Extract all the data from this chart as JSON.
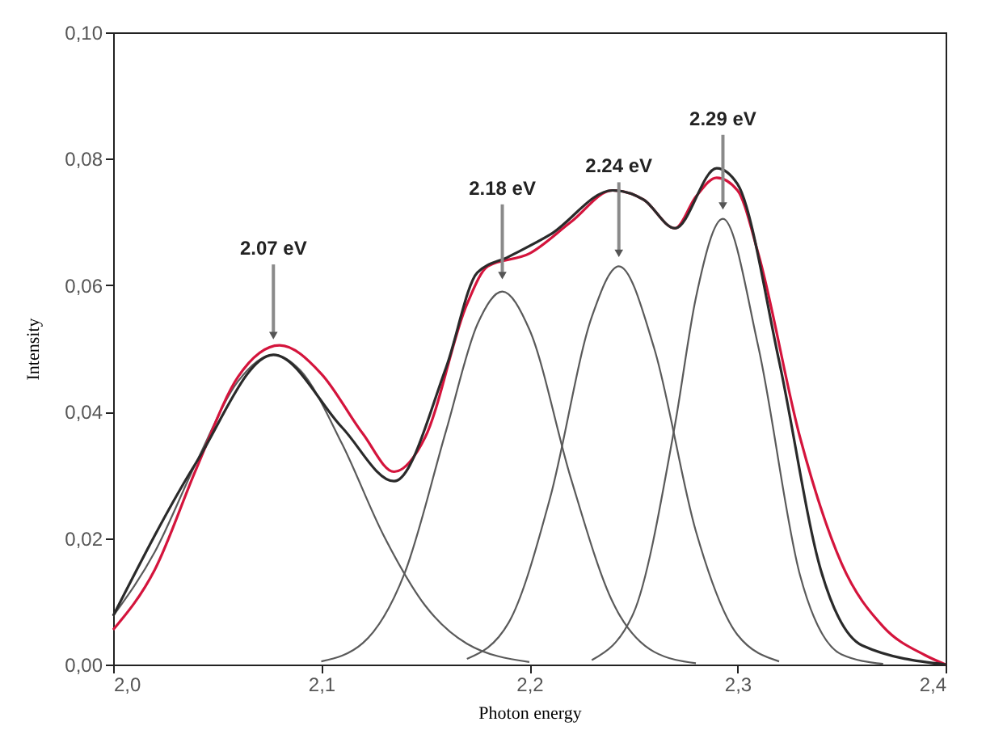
{
  "chart_data": {
    "type": "line",
    "xlabel": "Photon energy",
    "ylabel": "Intensity",
    "xlim": [
      2.0,
      2.4
    ],
    "ylim": [
      0,
      0.1
    ],
    "xticks": [
      {
        "value": 2.0,
        "label": "2,0"
      },
      {
        "value": 2.1,
        "label": "2,1"
      },
      {
        "value": 2.2,
        "label": "2,2"
      },
      {
        "value": 2.3,
        "label": "2,3"
      },
      {
        "value": 2.4,
        "label": "2,4"
      }
    ],
    "yticks": [
      {
        "value": 0,
        "label": "0,00"
      },
      {
        "value": 0.02,
        "label": "0,02"
      },
      {
        "value": 0.04,
        "label": "0,04"
      },
      {
        "value": 0.06,
        "label": "0,06"
      },
      {
        "value": 0.08,
        "label": "0,08"
      },
      {
        "value": 0.1,
        "label": "0,10"
      }
    ],
    "grid": false,
    "marker": "none",
    "line_style": "solid",
    "series": [
      {
        "color": "#5a5a5a",
        "x": [
          2.0,
          2.02,
          2.04,
          2.06,
          2.077,
          2.09,
          2.11,
          2.13,
          2.15,
          2.17,
          2.2
        ],
        "values": [
          0.0077,
          0.0178,
          0.032,
          0.0448,
          0.049,
          0.0465,
          0.0349,
          0.0204,
          0.0093,
          0.0033,
          0.0004
        ]
      },
      {
        "color": "#5a5a5a",
        "x": [
          2.1,
          2.12,
          2.14,
          2.16,
          2.175,
          2.187,
          2.2,
          2.22,
          2.24,
          2.26,
          2.28
        ],
        "values": [
          0.0005,
          0.0034,
          0.0144,
          0.037,
          0.0538,
          0.059,
          0.053,
          0.0294,
          0.0099,
          0.002,
          0.0002
        ]
      },
      {
        "color": "#5a5a5a",
        "x": [
          2.17,
          2.19,
          2.21,
          2.23,
          2.243,
          2.26,
          2.28,
          2.3,
          2.32
        ],
        "values": [
          0.0009,
          0.0066,
          0.0264,
          0.055,
          0.063,
          0.05,
          0.0211,
          0.0047,
          0.0005
        ]
      },
      {
        "color": "#5a5a5a",
        "x": [
          2.23,
          2.25,
          2.27,
          2.28,
          2.293,
          2.31,
          2.33,
          2.35,
          2.37
        ],
        "values": [
          0.0007,
          0.0081,
          0.038,
          0.058,
          0.0705,
          0.0503,
          0.0142,
          0.0016,
          0.0001
        ]
      },
      {
        "color": "#d4143c",
        "x": [
          2.0,
          2.02,
          2.04,
          2.06,
          2.08,
          2.1,
          2.12,
          2.135,
          2.15,
          2.17,
          2.18,
          2.2,
          2.22,
          2.24,
          2.255,
          2.27,
          2.28,
          2.29,
          2.3,
          2.31,
          2.33,
          2.35,
          2.37,
          2.39,
          2.4
        ],
        "values": [
          0.0055,
          0.015,
          0.031,
          0.0455,
          0.0505,
          0.046,
          0.0365,
          0.0305,
          0.036,
          0.057,
          0.063,
          0.065,
          0.07,
          0.075,
          0.0735,
          0.069,
          0.074,
          0.077,
          0.075,
          0.065,
          0.036,
          0.016,
          0.006,
          0.0015,
          0.0
        ]
      },
      {
        "color": "#2a2a2a",
        "x": [
          2.0,
          2.04,
          2.077,
          2.11,
          2.135,
          2.16,
          2.175,
          2.19,
          2.21,
          2.24,
          2.255,
          2.27,
          2.29,
          2.3,
          2.32,
          2.34,
          2.36,
          2.4
        ],
        "values": [
          0.0077,
          0.032,
          0.049,
          0.0375,
          0.029,
          0.047,
          0.062,
          0.0645,
          0.068,
          0.075,
          0.0735,
          0.069,
          0.0785,
          0.076,
          0.048,
          0.015,
          0.003,
          0.0
        ]
      }
    ],
    "annotations": [
      {
        "text": "2.07 eV",
        "x": 2.077,
        "y": 0.0505
      },
      {
        "text": "2.18 eV",
        "x": 2.187,
        "y": 0.06
      },
      {
        "text": "2.24 eV",
        "x": 2.243,
        "y": 0.0635
      },
      {
        "text": "2.29 eV",
        "x": 2.293,
        "y": 0.071
      }
    ]
  }
}
